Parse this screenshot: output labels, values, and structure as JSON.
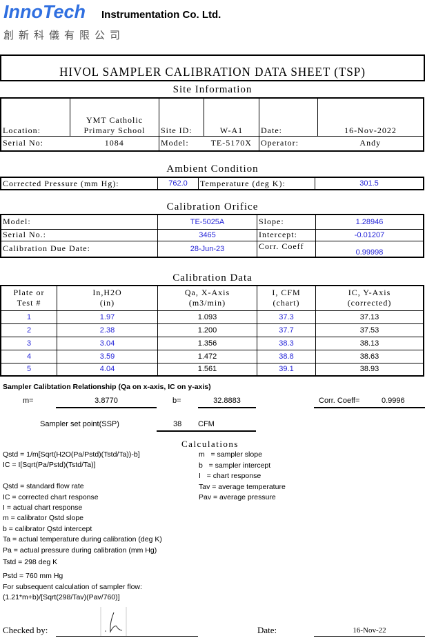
{
  "header": {
    "logo": "InnoTech",
    "company": "Instrumentation Co. Ltd.",
    "chinese_name": "創新科儀有限公司",
    "brand_color": "#2f6fe0"
  },
  "title": "HIVOL SAMPLER CALIBRATION  DATA SHEET (TSP)",
  "site": {
    "section": "Site Information",
    "location_label": "Location:",
    "location_line1": "YMT Catholic",
    "location_line2": "Primary School",
    "site_id_label": "Site ID:",
    "site_id": "W-A1",
    "date_label": "Date:",
    "date": "16-Nov-2022",
    "serial_label": "Serial No:",
    "serial": "1084",
    "model_label": "Model:",
    "model": "TE-5170X",
    "operator_label": "Operator:",
    "operator": "Andy"
  },
  "ambient": {
    "section": "Ambient Condition",
    "pressure_label": "Corrected Pressure (mm Hg):",
    "pressure": "762.0",
    "temp_label": "Temperature (deg K):",
    "temp": "301.5"
  },
  "orifice": {
    "section": "Calibration Orifice",
    "model_label": "Model:",
    "model": "TE-5025A",
    "slope_label": "Slope:",
    "slope": "1.28946",
    "serial_label": "Serial No.:",
    "serial": "3465",
    "intercept_label": "Intercept:",
    "intercept": "-0.01207",
    "due_label": "Calibration Due Date:",
    "due": "28-Jun-23",
    "corr_label": "Corr. Coeff",
    "corr": "0.99998"
  },
  "cal_data": {
    "section": "Calibration Data",
    "headers": [
      [
        "Plate or",
        "Test #"
      ],
      [
        "In,H2O",
        "(in)"
      ],
      [
        "Qa, X-Axis",
        "(m3/min)"
      ],
      [
        "I, CFM",
        "(chart)"
      ],
      [
        "IC, Y-Axis",
        "(corrected)"
      ]
    ],
    "rows": [
      [
        "1",
        "1.97",
        "1.093",
        "37.3",
        "37.13"
      ],
      [
        "2",
        "2.38",
        "1.200",
        "37.7",
        "37.53"
      ],
      [
        "3",
        "3.04",
        "1.356",
        "38.3",
        "38.13"
      ],
      [
        "4",
        "3.59",
        "1.472",
        "38.8",
        "38.63"
      ],
      [
        "5",
        "4.04",
        "1.561",
        "39.1",
        "38.93"
      ]
    ]
  },
  "relationship": {
    "heading": "Sampler Calibtation Relationship (Qa on x-axis, IC on y-axis)",
    "m_label": "m=",
    "m": "3.8770",
    "b_label": "b=",
    "b": "32.8883",
    "corr_label": "Corr. Coeff=",
    "corr": "0.9996",
    "ssp_label": "Sampler set point(SSP)",
    "ssp": "38",
    "ssp_unit": "CFM"
  },
  "calculations": {
    "heading": "Calculations",
    "left": [
      "Qstd = 1/m[Sqrt(H2O(Pa/Pstd)(Tstd/Ta))-b]",
      "IC = I[Sqrt(Pa/Pstd)(Tstd/Ta)]",
      "",
      "Qstd = standard flow rate",
      "IC = corrected chart response",
      "I = actual chart response",
      "m  = calibrator Qstd slope",
      "b  = calibrator Qstd intercept",
      "Ta = actual temperature during calibration (deg K)",
      "Pa = actual pressure during calibration (mm Hg)",
      "Tstd = 298 deg K",
      "Pstd = 760 mm Hg",
      "For subsequent calculation of sampler flow:",
      "(1.21*m+b)/[Sqrt(298/Tav)(Pav/760)]"
    ],
    "right": [
      "m   = sampler slope",
      "b   = sampler intercept",
      "I   = chart response",
      "Tav = average temperature",
      "Pav = average pressure"
    ]
  },
  "footer": {
    "checked_label": "Checked by:",
    "date_label": "Date:",
    "date": "16-Nov-22"
  }
}
